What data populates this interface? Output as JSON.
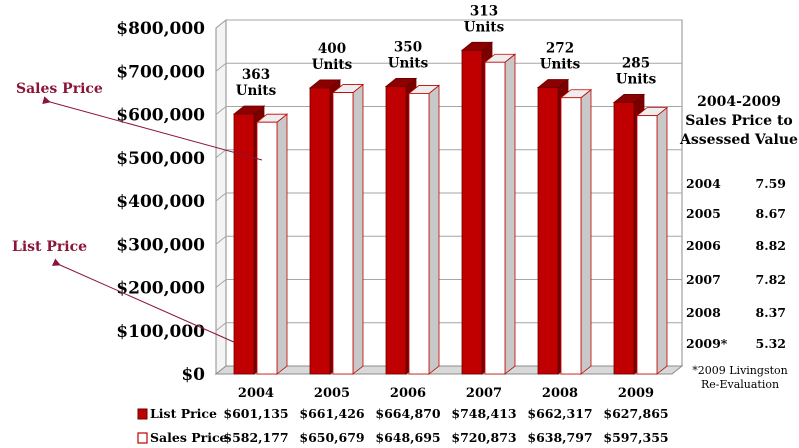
{
  "chart_data": {
    "type": "bar",
    "categories": [
      "2004",
      "2005",
      "2006",
      "2007",
      "2008",
      "2009"
    ],
    "series": [
      {
        "name": "List Price",
        "values": [
          601135,
          661426,
          664870,
          748413,
          662317,
          627865
        ],
        "color": "#c00000"
      },
      {
        "name": "Sales Price",
        "values": [
          582177,
          650679,
          648695,
          720873,
          638797,
          597355
        ],
        "color": "#ffffff"
      }
    ],
    "series_labels": [
      [
        "$601,135",
        "$661,426",
        "$664,870",
        "$748,413",
        "$662,317",
        "$627,865"
      ],
      [
        "$582,177",
        "$650,679",
        "$648,695",
        "$720,873",
        "$638,797",
        "$597,355"
      ]
    ],
    "unit_labels": [
      "363",
      "400",
      "350",
      "313",
      "272",
      "285"
    ],
    "unit_suffix": "Units",
    "y_ticks": [
      "$0",
      "$100,000",
      "$200,000",
      "$300,000",
      "$400,000",
      "$500,000",
      "$600,000",
      "$700,000",
      "$800,000"
    ],
    "ylim": [
      0,
      800000
    ],
    "grid": true,
    "annotations": [
      "Sales Price",
      "List Price"
    ]
  },
  "side_table": {
    "title_lines": [
      "2004-2009",
      "Sales Price to",
      "Assessed Value"
    ],
    "rows": [
      {
        "year": "2004",
        "value": "7.59"
      },
      {
        "year": "2005",
        "value": "8.67"
      },
      {
        "year": "2006",
        "value": "8.82"
      },
      {
        "year": "2007",
        "value": "7.82"
      },
      {
        "year": "2008",
        "value": "8.37"
      },
      {
        "year": "2009*",
        "value": "5.32"
      }
    ],
    "footnote_lines": [
      "*2009 Livingston",
      "Re-Evaluation"
    ]
  },
  "colors": {
    "list_fill": "#c00000",
    "list_top": "#8b0000",
    "list_side": "#7a0000",
    "sales_fill": "#ffffff",
    "sales_side": "#c8c8c8",
    "sales_edge": "#c00000",
    "annotation": "#8b1538",
    "grid": "#a6a6a6"
  }
}
